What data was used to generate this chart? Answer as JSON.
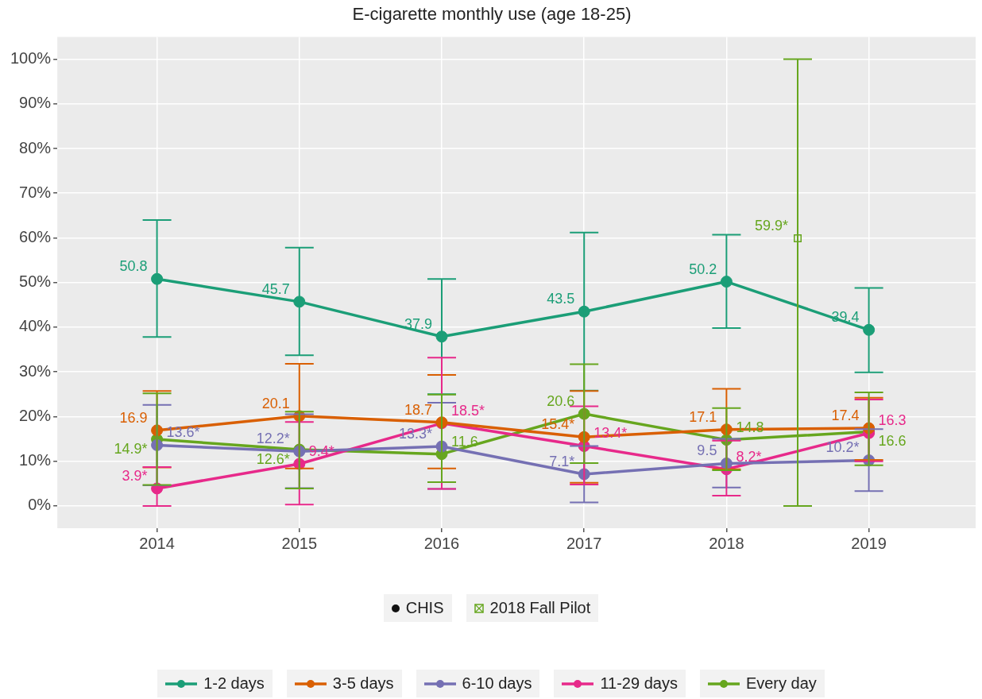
{
  "chart_data": {
    "type": "line",
    "title": "E-cigarette monthly use (age 18-25)",
    "x": [
      2014,
      2015,
      2016,
      2017,
      2018,
      2019
    ],
    "xlim": [
      2013.3,
      2019.75
    ],
    "xticks": [
      2014,
      2015,
      2016,
      2017,
      2018,
      2019
    ],
    "ylim": [
      -5,
      105
    ],
    "yticks": [
      {
        "value": 0,
        "label": "0%"
      },
      {
        "value": 10,
        "label": "10%"
      },
      {
        "value": 20,
        "label": "20%"
      },
      {
        "value": 30,
        "label": "30%"
      },
      {
        "value": 40,
        "label": "40%"
      },
      {
        "value": 50,
        "label": "50%"
      },
      {
        "value": 60,
        "label": "60%"
      },
      {
        "value": 70,
        "label": "70%"
      },
      {
        "value": 80,
        "label": "80%"
      },
      {
        "value": 90,
        "label": "90%"
      },
      {
        "value": 100,
        "label": "100%"
      }
    ],
    "grid": true,
    "legend": "bottom",
    "marker": "circle",
    "line_style": "solid",
    "annotations": [
      "CHIS"
    ],
    "series": [
      {
        "name": "1-2 days",
        "color": "#1b9e77",
        "values": [
          50.8,
          45.7,
          37.9,
          43.5,
          50.2,
          39.4
        ],
        "value_labels": [
          "50.8",
          "45.7",
          "37.9",
          "43.5",
          "50.2",
          "39.4"
        ],
        "errors": [
          [
            37.8,
            64
          ],
          [
            33.7,
            57.8
          ],
          [
            25,
            50.8
          ],
          [
            25.8,
            61.2
          ],
          [
            39.8,
            60.7
          ],
          [
            29.9,
            48.8
          ]
        ]
      },
      {
        "name": "3-5 days",
        "color": "#d95f02",
        "values": [
          16.9,
          20.1,
          18.7,
          15.4,
          17.1,
          17.4
        ],
        "value_labels": [
          "16.9",
          "20.1",
          "18.7",
          "15.4*",
          "17.1",
          "17.4"
        ],
        "errors": [
          [
            8.6,
            25.7
          ],
          [
            8.4,
            31.8
          ],
          [
            8.4,
            29.3
          ],
          [
            5.2,
            25.7
          ],
          [
            8.2,
            26.2
          ],
          [
            10.3,
            24.2
          ]
        ]
      },
      {
        "name": "6-10 days",
        "color": "#7570b3",
        "values": [
          13.6,
          12.2,
          13.3,
          7.1,
          9.5,
          10.2
        ],
        "value_labels": [
          "13.6*",
          "12.2*",
          "13.3*",
          "7.1*",
          "9.5",
          "10.2*"
        ],
        "errors": [
          [
            4.6,
            22.6
          ],
          [
            4,
            20.5
          ],
          [
            3.8,
            23.1
          ],
          [
            0.8,
            13.4
          ],
          [
            4.1,
            15
          ],
          [
            3.3,
            17.2
          ]
        ]
      },
      {
        "name": "11-29 days",
        "color": "#e7298a",
        "values": [
          3.9,
          9.4,
          18.5,
          13.4,
          8.2,
          16.3
        ],
        "value_labels": [
          "3.9*",
          "9.4*",
          "18.5*",
          "13.4*",
          "8.2*",
          "16.3"
        ],
        "errors": [
          [
            0,
            8.7
          ],
          [
            0.3,
            18.8
          ],
          [
            3.8,
            33.2
          ],
          [
            4.8,
            22.3
          ],
          [
            2.3,
            14.6
          ],
          [
            10,
            23.8
          ]
        ]
      },
      {
        "name": "Every day",
        "color": "#66a61e",
        "values": [
          14.9,
          12.6,
          11.6,
          20.6,
          14.8,
          16.6
        ],
        "value_labels": [
          "14.9*",
          "12.6*",
          "11.6",
          "20.6",
          "14.8",
          "16.6"
        ],
        "errors": [
          [
            4.7,
            25.2
          ],
          [
            3.9,
            21.1
          ],
          [
            5.3,
            24.9
          ],
          [
            9.6,
            31.7
          ],
          [
            8,
            21.9
          ],
          [
            9.1,
            25.4
          ]
        ]
      },
      {
        "name": "2018 Fall Pilot",
        "type": "scatter",
        "marker": "square",
        "color": "#66a61e",
        "x": [
          2018.5
        ],
        "values": [
          59.9
        ],
        "value_labels": [
          "59.9*"
        ],
        "errors": [
          [
            0,
            100
          ]
        ]
      }
    ]
  }
}
